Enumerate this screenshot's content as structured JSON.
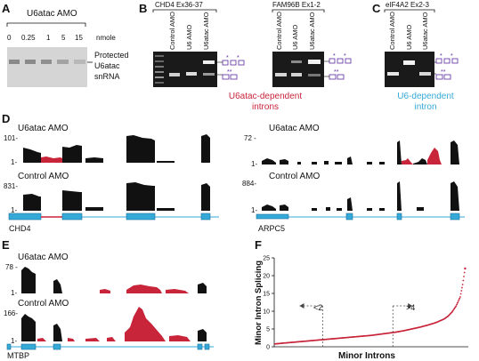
{
  "panels": {
    "A": {
      "letter": "A",
      "title": "U6atac AMO",
      "lanes": [
        "0",
        "0.25",
        "1",
        "5",
        "15"
      ],
      "unit": "nmole",
      "band_label_lines": [
        "Protected",
        "U6atac",
        "snRNA"
      ]
    },
    "B": {
      "letter": "B",
      "gel1_title": "CHD4 Ex36-37",
      "gel2_title": "FAM96B Ex1-2",
      "lanes": [
        "Control AMO",
        "U6 AMO",
        "U6atac AMO"
      ],
      "caption_lines": [
        "U6atac-dependent",
        "introns"
      ]
    },
    "C": {
      "letter": "C",
      "gel_title": "eIF4A2 Ex2-3",
      "lanes": [
        "Control AMO",
        "U6 AMO",
        "U6atac AMO"
      ],
      "caption_lines": [
        "U6-dependent",
        "intron"
      ]
    },
    "D": {
      "letter": "D",
      "left": {
        "track1": "U6atac AMO",
        "scale1": "101-",
        "track2": "Control AMO",
        "scale2": "831-",
        "one": "1-",
        "gene": "CHD4"
      },
      "right": {
        "track1": "U6atac AMO",
        "scale1": "72 -",
        "track2": "Control AMO",
        "scale2": "884-",
        "one": "1-",
        "gene": "ARPC5"
      }
    },
    "E": {
      "letter": "E",
      "track1": "U6atac AMO",
      "scale1": "78 -",
      "track2": "Control AMO",
      "scale2": "166-",
      "one": "1-",
      "gene": "MTBP"
    },
    "F": {
      "letter": "F",
      "ylabel": "Minor Intron Splicing",
      "xlabel": "Minor Introns",
      "annot_low": "<2",
      "annot_high": ">4"
    }
  },
  "colors": {
    "red": "#c8243a",
    "blue": "#35a9d8",
    "purple": "#5b2a9e",
    "black": "#111111"
  },
  "chart_data": {
    "type": "scatter",
    "title": "",
    "xlabel": "Minor Introns",
    "ylabel": "Minor Intron Splicing",
    "y_ticks": [
      0,
      5,
      10,
      15,
      20,
      25
    ],
    "ylim": [
      0,
      25
    ],
    "x": [
      1,
      10,
      20,
      30,
      40,
      50,
      60,
      70,
      80,
      90,
      100,
      110,
      120,
      130,
      140,
      150,
      160,
      170,
      180,
      190,
      200,
      210,
      215,
      220,
      225,
      230,
      233,
      236
    ],
    "y": [
      0.8,
      1.0,
      1.2,
      1.4,
      1.6,
      1.8,
      2.0,
      2.2,
      2.4,
      2.6,
      2.8,
      3.0,
      3.2,
      3.5,
      3.8,
      4.1,
      4.5,
      5.0,
      5.5,
      6.1,
      6.8,
      7.8,
      8.6,
      9.8,
      11.5,
      14.0,
      17.5,
      22.0
    ],
    "thresholds": [
      2,
      4
    ],
    "grid": false,
    "legend": "none"
  }
}
